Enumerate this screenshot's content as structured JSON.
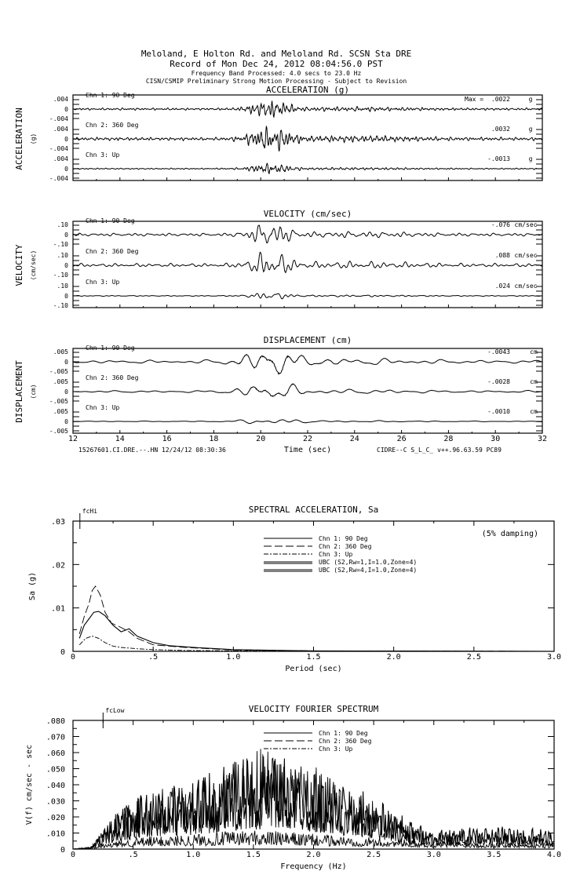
{
  "header": {
    "line1": "Meloland, E Holton Rd. and Meloland Rd.    SCSN Sta DRE",
    "line2": "Record of Mon Dec 24, 2012 08:04:56.0 PST",
    "line3": "Frequency Band Processed: 4.0 secs to 23.0 Hz",
    "line4": "CISN/CSMIP Preliminary Strong Motion Processing - Subject to Revision"
  },
  "footer": {
    "left": "15267601.CI.DRE.--.HN 12/24/12 08:30:36",
    "right": "CIDRE--C  S_L_C_  v++.96.63.59  PC89"
  },
  "chart_data": [
    {
      "type": "line",
      "title": "ACCELERATION (g)",
      "ylabel": "ACCELERATION",
      "yunit": "(g)",
      "xlabel": "Time (sec)",
      "xlim": [
        12,
        32
      ],
      "xticks": [
        "12",
        "14",
        "16",
        "18",
        "20",
        "22",
        "24",
        "26",
        "28",
        "30",
        "32"
      ],
      "ytick_labels": [
        ".004",
        "0",
        "-.004"
      ],
      "ylim": [
        -0.004,
        0.004
      ],
      "max_label": "Max =",
      "unit": "g",
      "series": [
        {
          "name": "Chn 1: 90 Deg",
          "peak": 0.0022,
          "peak_label": ".0022"
        },
        {
          "name": "Chn 2: 360 Deg",
          "peak": 0.0032,
          "peak_label": ".0032"
        },
        {
          "name": "Chn 3: Up",
          "peak": -0.0013,
          "peak_label": "-.0013"
        }
      ]
    },
    {
      "type": "line",
      "title": "VELOCITY (cm/sec)",
      "ylabel": "VELOCITY",
      "yunit": "(cm/sec)",
      "xlim": [
        12,
        32
      ],
      "ytick_labels": [
        ".10",
        "0",
        "-.10"
      ],
      "ylim": [
        -0.1,
        0.1
      ],
      "unit": "cm/sec",
      "series": [
        {
          "name": "Chn 1: 90 Deg",
          "peak": -0.076,
          "peak_label": "-.076"
        },
        {
          "name": "Chn 2: 360 Deg",
          "peak": 0.088,
          "peak_label": ".088"
        },
        {
          "name": "Chn 3: Up",
          "peak": 0.024,
          "peak_label": ".024"
        }
      ]
    },
    {
      "type": "line",
      "title": "DISPLACEMENT (cm)",
      "ylabel": "DISPLACEMENT",
      "yunit": "(cm)",
      "xlim": [
        12,
        32
      ],
      "ytick_labels": [
        ".005",
        "0",
        "-.005"
      ],
      "ylim": [
        -0.005,
        0.005
      ],
      "unit": "cm",
      "series": [
        {
          "name": "Chn 1: 90 Deg",
          "peak": -0.0043,
          "peak_label": "-.0043"
        },
        {
          "name": "Chn 2: 360 Deg",
          "peak": -0.0028,
          "peak_label": "-.0028"
        },
        {
          "name": "Chn 3: Up",
          "peak": -0.001,
          "peak_label": "-.0010"
        }
      ]
    },
    {
      "type": "line",
      "title": "SPECTRAL ACCELERATION, Sa",
      "note": "(5% damping)",
      "marker": "fcHi",
      "marker_x": 0.043,
      "xlabel": "Period (sec)",
      "ylabel": "Sa (g)",
      "xlim": [
        0,
        3.0
      ],
      "ylim": [
        0,
        0.03
      ],
      "xticks": [
        "0",
        ".5",
        "1.0",
        "1.5",
        "2.0",
        "2.5",
        "3.0"
      ],
      "yticks": [
        ".03",
        ".02",
        ".01",
        "0"
      ],
      "legend_position": "top-center",
      "series": [
        {
          "name": "Chn 1: 90 Deg",
          "style": "solid",
          "x": [
            0.04,
            0.07,
            0.1,
            0.13,
            0.16,
            0.2,
            0.25,
            0.3,
            0.35,
            0.4,
            0.5,
            0.6,
            0.8,
            1.0,
            1.5,
            3.0
          ],
          "y": [
            0.003,
            0.006,
            0.0075,
            0.009,
            0.0092,
            0.0082,
            0.006,
            0.0045,
            0.0052,
            0.0035,
            0.002,
            0.0013,
            0.0008,
            0.0004,
            0.0001,
            0
          ]
        },
        {
          "name": "Chn 2: 360 Deg",
          "style": "dashed",
          "x": [
            0.04,
            0.07,
            0.1,
            0.12,
            0.14,
            0.17,
            0.2,
            0.24,
            0.3,
            0.35,
            0.4,
            0.5,
            0.7,
            1.0,
            1.5,
            3.0
          ],
          "y": [
            0.004,
            0.008,
            0.011,
            0.014,
            0.015,
            0.013,
            0.009,
            0.0065,
            0.0055,
            0.0045,
            0.003,
            0.0015,
            0.0009,
            0.0003,
            0.0001,
            0
          ]
        },
        {
          "name": "Chn 3: Up",
          "style": "dash-dot",
          "x": [
            0.04,
            0.08,
            0.12,
            0.16,
            0.2,
            0.25,
            0.3,
            0.4,
            0.5,
            0.7,
            1.0,
            3.0
          ],
          "y": [
            0.0015,
            0.003,
            0.0035,
            0.003,
            0.002,
            0.0012,
            0.0009,
            0.0006,
            0.0004,
            0.0002,
            0.0001,
            0
          ]
        },
        {
          "name": "UBC (S2,Rw=1,I=1.0,Zone=4)",
          "style": "double"
        },
        {
          "name": "UBC (S2,Rw=4,I=1.0,Zone=4)",
          "style": "double"
        }
      ]
    },
    {
      "type": "line",
      "title": "VELOCITY FOURIER SPECTRUM",
      "marker": "fcLow",
      "marker_x": 0.25,
      "xlabel": "Frequency (Hz)",
      "ylabel": "V(f)   cm/sec - sec",
      "xlim": [
        0,
        4.0
      ],
      "ylim": [
        0,
        0.08
      ],
      "xticks": [
        "0",
        ".5",
        "1.0",
        "1.5",
        "2.0",
        "2.5",
        "3.0",
        "3.5",
        "4.0"
      ],
      "yticks": [
        ".080",
        ".070",
        ".060",
        ".050",
        ".040",
        ".030",
        ".020",
        ".010",
        "0"
      ],
      "legend_position": "top-center",
      "series": [
        {
          "name": "Chn 1: 90 Deg",
          "style": "solid",
          "envelope_x": [
            0,
            0.15,
            0.25,
            0.4,
            0.6,
            1.0,
            1.3,
            1.6,
            1.9,
            2.2,
            2.5,
            2.8,
            3.0,
            3.5,
            4.0
          ],
          "envelope_y": [
            0,
            0.001,
            0.01,
            0.02,
            0.03,
            0.035,
            0.045,
            0.05,
            0.045,
            0.035,
            0.028,
            0.015,
            0.01,
            0.012,
            0.01
          ]
        },
        {
          "name": "Chn 2: 360 Deg",
          "style": "dashed",
          "envelope_x": [
            0,
            0.15,
            0.25,
            0.4,
            0.6,
            1.0,
            1.3,
            1.6,
            1.9,
            2.2,
            2.5,
            2.8,
            3.0,
            3.5,
            4.0
          ],
          "envelope_y": [
            0,
            0.001,
            0.01,
            0.022,
            0.03,
            0.035,
            0.045,
            0.055,
            0.05,
            0.035,
            0.025,
            0.012,
            0.008,
            0.008,
            0.007
          ]
        },
        {
          "name": "Chn 3: Up",
          "style": "dash-dot",
          "envelope_x": [
            0,
            0.2,
            0.5,
            1.0,
            1.5,
            2.0,
            2.5,
            3.0,
            4.0
          ],
          "envelope_y": [
            0,
            0.002,
            0.006,
            0.008,
            0.01,
            0.008,
            0.006,
            0.004,
            0.003
          ]
        }
      ]
    }
  ]
}
